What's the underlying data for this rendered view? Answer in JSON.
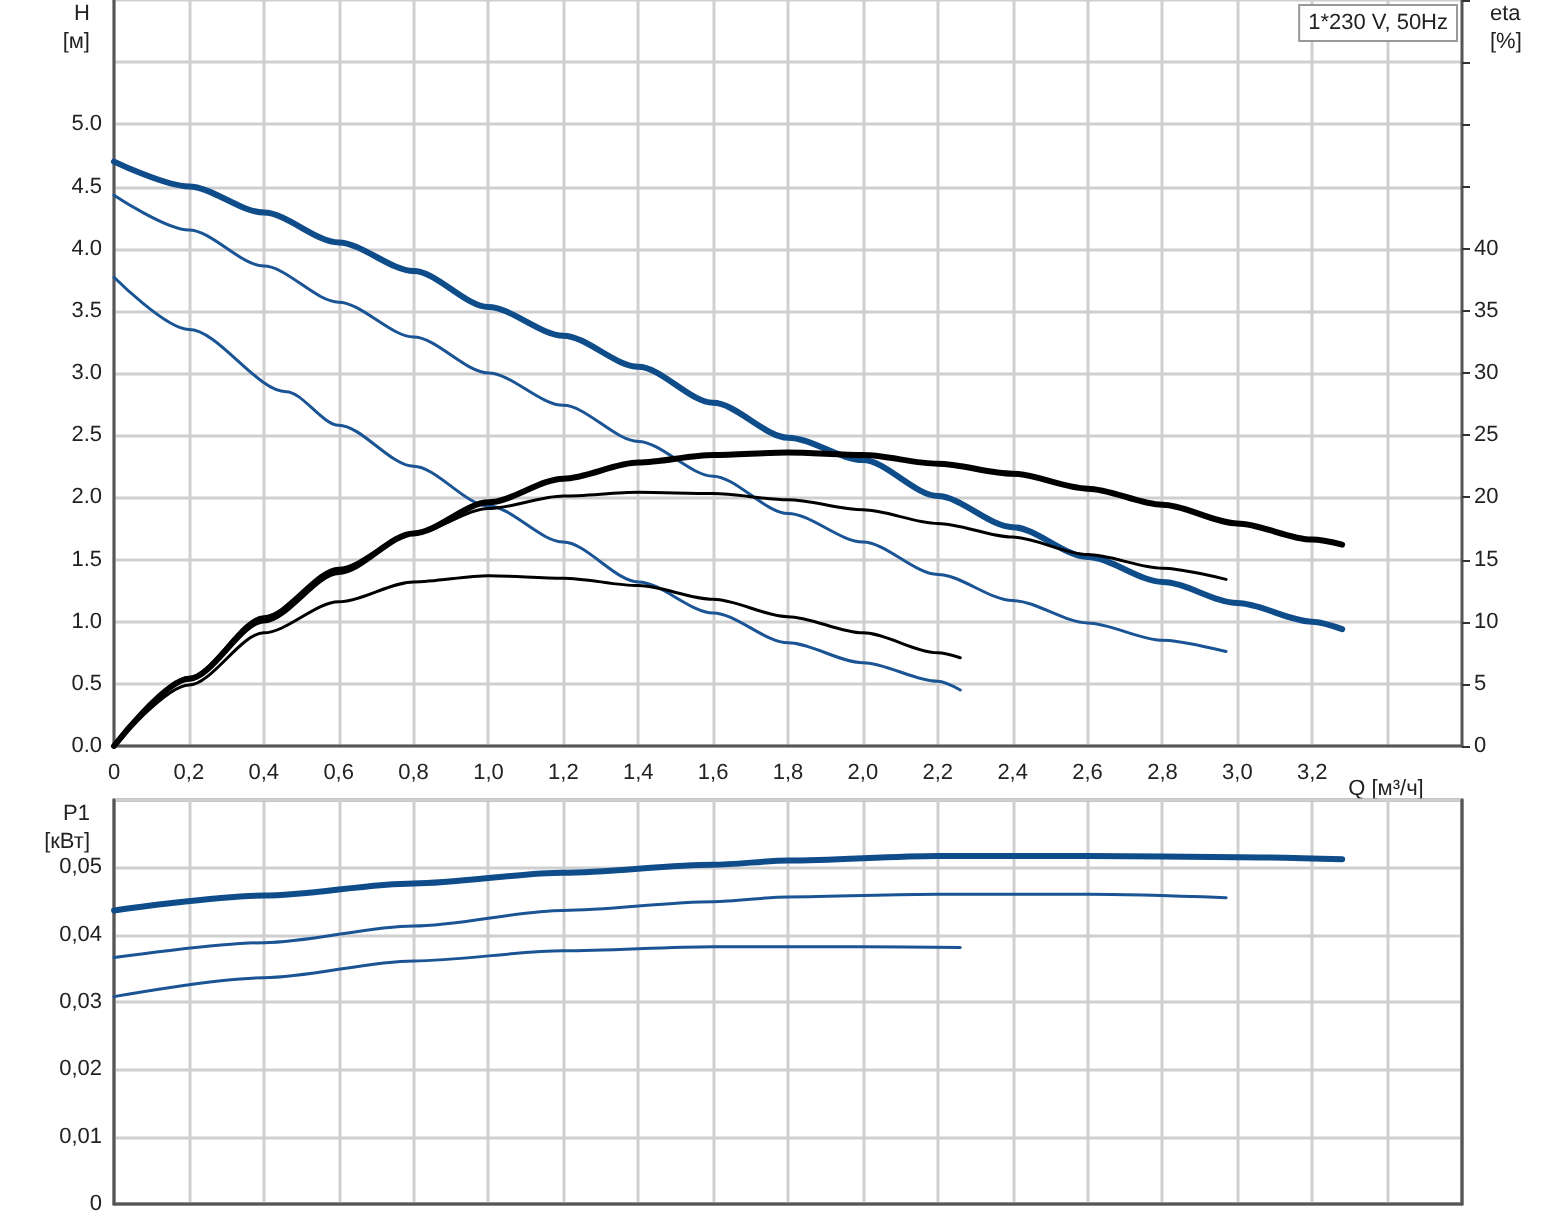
{
  "chart_data": [
    {
      "type": "line",
      "xlabel": "Q [м³/ч]",
      "ylabel": "H [м]",
      "y2label": "eta [%]",
      "xlim": [
        0,
        3.6
      ],
      "xticks": [
        0,
        {
          "value": 0.2,
          "label": "0,2"
        },
        {
          "value": 0.4,
          "label": "0,4"
        },
        {
          "value": 0.6,
          "label": "0,6"
        },
        {
          "value": 0.8,
          "label": "0,8"
        },
        {
          "value": 1.0,
          "label": "1,0"
        },
        {
          "value": 1.2,
          "label": "1,2"
        },
        {
          "value": 1.4,
          "label": "1,4"
        },
        {
          "value": 1.6,
          "label": "1,6"
        },
        {
          "value": 1.8,
          "label": "1,8"
        },
        {
          "value": 2.0,
          "label": "2,0"
        },
        {
          "value": 2.2,
          "label": "2,2"
        },
        {
          "value": 2.4,
          "label": "2,4"
        },
        {
          "value": 2.6,
          "label": "2,6"
        },
        {
          "value": 2.8,
          "label": "2,8"
        },
        {
          "value": 3.0,
          "label": "3,0"
        },
        {
          "value": 3.2,
          "label": "3,2"
        },
        {
          "value": 3.4,
          "label": null
        }
      ],
      "ylim": [
        0,
        6
      ],
      "yticks": [
        {
          "value": 0,
          "label": "0.0"
        },
        0.5,
        {
          "value": 1,
          "label": "1.0"
        },
        1.5,
        {
          "value": 2,
          "label": "2.0"
        },
        2.5,
        {
          "value": 3,
          "label": "3.0"
        },
        3.5,
        {
          "value": 4,
          "label": "4.0"
        },
        4.5,
        {
          "value": 5,
          "label": "5.0"
        },
        {
          "value": 5.5,
          "label": null
        },
        {
          "value": 6,
          "label": null
        }
      ],
      "y2lim": [
        0,
        60
      ],
      "y2ticks": [
        0,
        5,
        10,
        15,
        20,
        25,
        30,
        35,
        40,
        {
          "value": 45,
          "label": null
        },
        {
          "value": 50,
          "label": null
        },
        {
          "value": 55,
          "label": null
        },
        {
          "value": 60,
          "label": null
        }
      ],
      "grid": true,
      "annotations": [
        "1*230 V, 50Hz"
      ],
      "series": [
        {
          "color": "#0f4c8a",
          "x": [
            0,
            0.2,
            0.4,
            0.6,
            0.8,
            1.0,
            1.2,
            1.4,
            1.6,
            1.8,
            2.0,
            2.2,
            2.4,
            2.6,
            2.8,
            3.0,
            3.2,
            3.28
          ],
          "values": [
            4.7,
            4.5,
            4.29,
            4.05,
            3.82,
            3.53,
            3.3,
            3.05,
            2.76,
            2.48,
            2.3,
            2.01,
            1.76,
            1.52,
            1.32,
            1.15,
            1.0,
            0.94
          ]
        },
        {
          "color": "#1a5494",
          "x": [
            0,
            0.2,
            0.4,
            0.6,
            0.8,
            1.0,
            1.2,
            1.4,
            1.6,
            1.8,
            2.0,
            2.2,
            2.4,
            2.6,
            2.8,
            2.97
          ],
          "values": [
            4.43,
            4.15,
            3.86,
            3.57,
            3.29,
            3.0,
            2.74,
            2.45,
            2.17,
            1.87,
            1.64,
            1.38,
            1.17,
            0.99,
            0.85,
            0.76
          ]
        },
        {
          "color": "#1a5494",
          "x": [
            0,
            0.2,
            0.46,
            0.6,
            0.8,
            1.0,
            1.2,
            1.4,
            1.6,
            1.8,
            2.0,
            2.2,
            2.26
          ],
          "values": [
            3.77,
            3.35,
            2.85,
            2.58,
            2.25,
            1.93,
            1.64,
            1.32,
            1.07,
            0.83,
            0.67,
            0.52,
            0.45
          ]
        },
        {
          "color": "#000000",
          "axis": "y2",
          "x": [
            0,
            0.2,
            0.4,
            0.6,
            0.8,
            1.0,
            1.2,
            1.4,
            1.6,
            1.8,
            2.0,
            2.2,
            2.4,
            2.6,
            2.8,
            3.0,
            3.2,
            3.28
          ],
          "values": [
            0,
            5.4,
            10.1,
            14.0,
            17.1,
            19.6,
            21.5,
            22.8,
            23.4,
            23.6,
            23.4,
            22.7,
            21.9,
            20.7,
            19.4,
            17.9,
            16.6,
            16.2
          ]
        },
        {
          "color": "#000000",
          "axis": "y2",
          "x": [
            0,
            0.2,
            0.4,
            0.6,
            0.8,
            1.0,
            1.2,
            1.4,
            1.6,
            1.8,
            2.0,
            2.2,
            2.4,
            2.6,
            2.8,
            2.97
          ],
          "values": [
            0,
            5.5,
            10.4,
            14.3,
            17.1,
            19.1,
            20.1,
            20.4,
            20.3,
            19.8,
            19.0,
            17.9,
            16.8,
            15.4,
            14.3,
            13.4
          ]
        },
        {
          "color": "#000000",
          "axis": "y2",
          "x": [
            0,
            0.2,
            0.4,
            0.6,
            0.8,
            1.0,
            1.2,
            1.4,
            1.6,
            1.8,
            2.0,
            2.2,
            2.26
          ],
          "values": [
            0,
            4.9,
            9.1,
            11.6,
            13.2,
            13.7,
            13.5,
            12.9,
            11.8,
            10.4,
            9.1,
            7.5,
            7.1
          ]
        }
      ]
    },
    {
      "type": "line",
      "ylabel": "P1 [кВт]",
      "tick_labels": "y",
      "xlim": [
        0,
        3.6
      ],
      "xticks": [
        0,
        0.2,
        0.4,
        0.6,
        0.8,
        1.0,
        1.2,
        1.4,
        1.6,
        1.8,
        2.0,
        2.2,
        2.4,
        2.6,
        2.8,
        3.0,
        3.2,
        3.4
      ],
      "ylim": [
        0,
        0.06
      ],
      "yticks": [
        0,
        {
          "value": 0.01,
          "label": "0,01"
        },
        {
          "value": 0.02,
          "label": "0,02"
        },
        {
          "value": 0.03,
          "label": "0,03"
        },
        {
          "value": 0.04,
          "label": "0,04"
        },
        {
          "value": 0.05,
          "label": "0,05"
        },
        {
          "value": 0.06,
          "label": null
        }
      ],
      "grid": true,
      "series": [
        {
          "color": "#0f4c8a",
          "x": [
            0,
            0.4,
            0.8,
            1.2,
            1.6,
            1.8,
            2.2,
            2.6,
            3.0,
            3.28
          ],
          "values": [
            0.0436,
            0.0458,
            0.0476,
            0.0492,
            0.0504,
            0.051,
            0.0517,
            0.0517,
            0.0515,
            0.0512
          ]
        },
        {
          "color": "#1a5494",
          "x": [
            0,
            0.4,
            0.8,
            1.2,
            1.6,
            1.8,
            2.2,
            2.6,
            2.97
          ],
          "values": [
            0.0366,
            0.0388,
            0.0413,
            0.0436,
            0.0449,
            0.0456,
            0.046,
            0.046,
            0.0455
          ]
        },
        {
          "color": "#1a5494",
          "x": [
            0,
            0.4,
            0.8,
            1.2,
            1.6,
            2.0,
            2.26
          ],
          "values": [
            0.0308,
            0.0336,
            0.0361,
            0.0376,
            0.0382,
            0.0382,
            0.0381
          ]
        }
      ]
    }
  ]
}
